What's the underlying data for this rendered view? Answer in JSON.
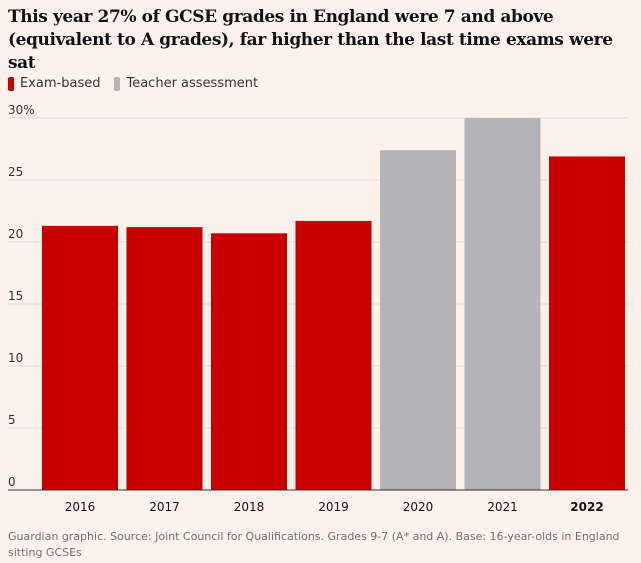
{
  "title": "This year 27% of GCSE grades in England were 7 and above (equivalent to A grades), far higher than the last time exams were sat",
  "legend": [
    {
      "label": "Exam-based",
      "color": "#c70000"
    },
    {
      "label": "Teacher assessment",
      "color": "#b4b4b8"
    }
  ],
  "source": "Guardian graphic. Source: Joint Council for Qualifications. Grades 9-7 (A* and A). Base: 16-year-olds in England sitting GCSEs",
  "chart_data": {
    "type": "bar",
    "categories": [
      "2016",
      "2017",
      "2018",
      "2019",
      "2020",
      "2021",
      "2022"
    ],
    "values": [
      21.3,
      21.2,
      20.7,
      21.7,
      27.4,
      30.0,
      26.9
    ],
    "bar_kind": [
      "Exam-based",
      "Exam-based",
      "Exam-based",
      "Exam-based",
      "Teacher assessment",
      "Teacher assessment",
      "Exam-based"
    ],
    "colors": {
      "Exam-based": "#c70000",
      "Teacher assessment": "#b4b4b8"
    },
    "highlight_category": "2022",
    "ylim": [
      0,
      30
    ],
    "yticks": [
      0,
      5,
      10,
      15,
      20,
      25,
      30
    ],
    "ytick_labels": [
      "0",
      "5",
      "10",
      "15",
      "20",
      "25",
      "30%"
    ],
    "grid": true
  }
}
